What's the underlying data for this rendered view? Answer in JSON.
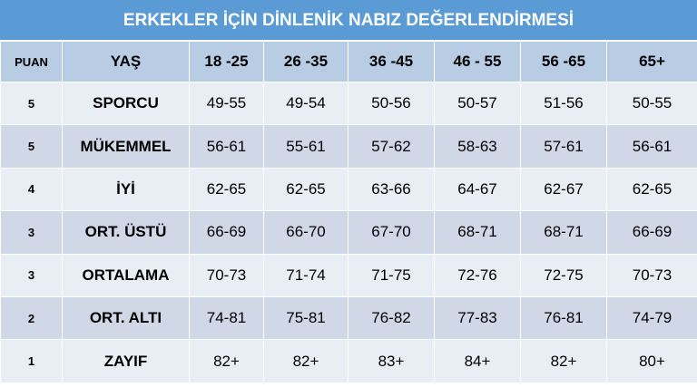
{
  "title": "ERKEKLER İÇİN DİNLENİK NABIZ DEĞERLENDİRMESİ",
  "table": {
    "header": [
      "PUAN",
      "YAŞ",
      "18 -25",
      "26 -35",
      "36 -45",
      "46 - 55",
      "56 -65",
      "65+"
    ],
    "rows": [
      [
        "5",
        "SPORCU",
        "49-55",
        "49-54",
        "50-56",
        "50-57",
        "51-56",
        "50-55"
      ],
      [
        "5",
        "MÜKEMMEL",
        "56-61",
        "55-61",
        "57-62",
        "58-63",
        "57-61",
        "56-61"
      ],
      [
        "4",
        "İYİ",
        "62-65",
        "62-65",
        "63-66",
        "64-67",
        "62-67",
        "62-65"
      ],
      [
        "3",
        "ORT. ÜSTÜ",
        "66-69",
        "66-70",
        "67-70",
        "68-71",
        "68-71",
        "66-69"
      ],
      [
        "3",
        "ORTALAMA",
        "70-73",
        "71-74",
        "71-75",
        "72-76",
        "72-75",
        "70-73"
      ],
      [
        "2",
        "ORT. ALTI",
        "74-81",
        "75-81",
        "76-82",
        "77-83",
        "76-81",
        "74-79"
      ],
      [
        "1",
        "ZAYIF",
        "82+",
        "82+",
        "83+",
        "84+",
        "82+",
        "80+"
      ]
    ]
  }
}
